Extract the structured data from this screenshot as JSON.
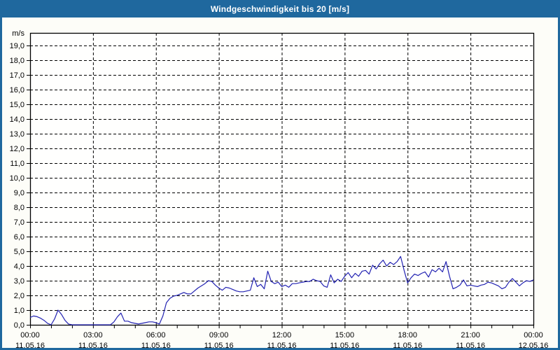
{
  "window": {
    "title": "Windgeschwindigkeit bis 20 [m/s]"
  },
  "colors": {
    "title_bar": "#1f689e",
    "window_border": "#1f689e",
    "content_background": "#fdfdf8",
    "plot_background": "#fffffe",
    "plot_border": "#000000",
    "gridline": "#000000",
    "axis_text": "#000000",
    "series_line": "#2222b2",
    "title_text": "#ffffff"
  },
  "chart_data": {
    "type": "line",
    "title": "Windgeschwindigkeit bis 20 [m/s]",
    "ylabel": "m/s",
    "xlabel": "",
    "ylim": [
      0,
      19.85
    ],
    "y_tick_step": 1.0,
    "y_tick_labels": [
      "0,0",
      "1,0",
      "2,0",
      "3,0",
      "4,0",
      "5,0",
      "6,0",
      "7,0",
      "8,0",
      "9,0",
      "10,0",
      "11,0",
      "12,0",
      "13,0",
      "14,0",
      "15,0",
      "16,0",
      "17,0",
      "18,0",
      "19,0"
    ],
    "x_range_hours": [
      0,
      24
    ],
    "x_minor_tick_every_hours": 1,
    "x_gridline_hours": [
      3,
      6,
      9,
      12,
      15,
      18,
      21
    ],
    "x_major_ticks": [
      {
        "hour": 0,
        "time": "00:00",
        "date": "11.05.16"
      },
      {
        "hour": 3,
        "time": "03:00",
        "date": "11.05.16"
      },
      {
        "hour": 6,
        "time": "06:00",
        "date": "11.05.16"
      },
      {
        "hour": 9,
        "time": "09:00",
        "date": "11.05.16"
      },
      {
        "hour": 12,
        "time": "12:00",
        "date": "11.05.16"
      },
      {
        "hour": 15,
        "time": "15:00",
        "date": "11.05.16"
      },
      {
        "hour": 18,
        "time": "18:00",
        "date": "11.05.16"
      },
      {
        "hour": 21,
        "time": "21:00",
        "date": "11.05.16"
      },
      {
        "hour": 24,
        "time": "00:00",
        "date": "12.05.16"
      }
    ],
    "grid": "dashed",
    "legend": "none",
    "series": [
      {
        "name": "Windgeschwindigkeit",
        "unit": "m/s",
        "color": "#2222b2",
        "start_hour": 0,
        "interval_minutes": 10,
        "values": [
          0.5,
          0.6,
          0.55,
          0.45,
          0.3,
          0.1,
          0.0,
          0.4,
          1.0,
          0.7,
          0.3,
          0.05,
          0.0,
          0.0,
          0.0,
          0.0,
          0.0,
          0.0,
          0.0,
          0.0,
          0.0,
          0.0,
          0.0,
          0.0,
          0.2,
          0.55,
          0.8,
          0.25,
          0.25,
          0.15,
          0.1,
          0.05,
          0.1,
          0.15,
          0.2,
          0.2,
          0.15,
          0.05,
          0.6,
          1.5,
          1.8,
          1.95,
          2.0,
          2.1,
          2.2,
          2.1,
          2.1,
          2.3,
          2.5,
          2.65,
          2.8,
          3.0,
          2.95,
          2.7,
          2.5,
          2.35,
          2.55,
          2.5,
          2.4,
          2.3,
          2.25,
          2.25,
          2.3,
          2.35,
          3.2,
          2.6,
          2.75,
          2.45,
          3.65,
          2.95,
          2.8,
          2.9,
          2.6,
          2.7,
          2.55,
          2.8,
          2.8,
          2.85,
          2.9,
          2.95,
          2.95,
          3.1,
          3.0,
          2.95,
          2.65,
          2.55,
          3.4,
          2.85,
          3.1,
          2.95,
          3.3,
          3.55,
          3.2,
          3.5,
          3.3,
          3.65,
          3.7,
          3.45,
          4.05,
          3.8,
          4.15,
          4.4,
          4.0,
          4.25,
          4.1,
          4.3,
          4.65,
          3.7,
          2.85,
          3.2,
          3.45,
          3.35,
          3.5,
          3.6,
          3.25,
          3.75,
          3.6,
          3.85,
          3.6,
          4.3,
          3.3,
          2.45,
          2.55,
          2.7,
          3.05,
          2.65,
          2.7,
          2.65,
          2.6,
          2.7,
          2.75,
          2.9,
          2.85,
          2.75,
          2.65,
          2.45,
          2.55,
          2.9,
          3.15,
          2.9,
          2.65,
          2.85,
          3.0,
          2.95,
          3.05
        ]
      }
    ]
  }
}
